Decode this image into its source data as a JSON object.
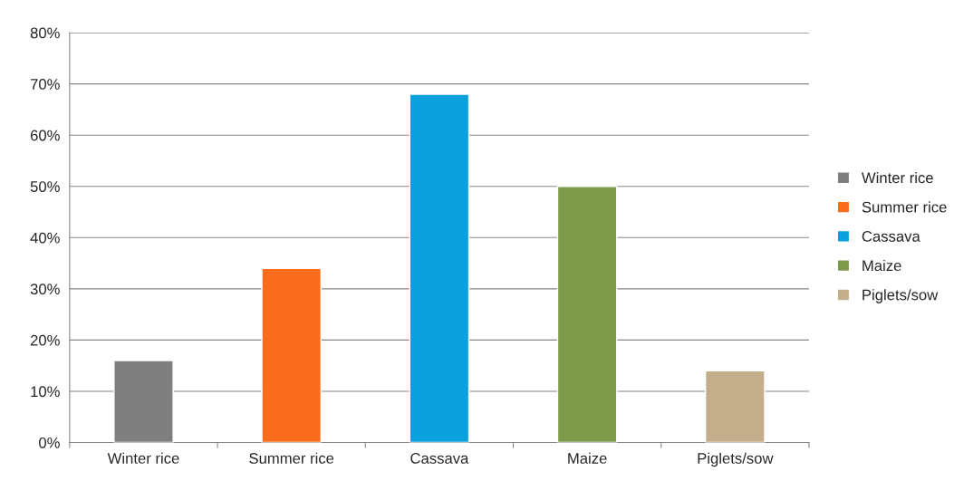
{
  "chart_data": {
    "type": "bar",
    "categories": [
      "Winter rice",
      "Summer rice",
      "Cassava",
      "Maize",
      "Piglets/sow"
    ],
    "series": [
      {
        "name": "Winter rice",
        "color": "#7f7f7f",
        "values": [
          16,
          null,
          null,
          null,
          null
        ]
      },
      {
        "name": "Summer rice",
        "color": "#f96c1c",
        "values": [
          null,
          34,
          null,
          null,
          null
        ]
      },
      {
        "name": "Cassava",
        "color": "#0ba1dc",
        "values": [
          null,
          null,
          68,
          null,
          null
        ]
      },
      {
        "name": "Maize",
        "color": "#7e9b4b",
        "values": [
          null,
          null,
          null,
          50,
          null
        ]
      },
      {
        "name": "Piglets/sow",
        "color": "#c4ad8b",
        "values": [
          null,
          null,
          null,
          null,
          14
        ]
      }
    ],
    "ylim": [
      0,
      80
    ],
    "yticks": [
      {
        "value": 0,
        "label": "0%"
      },
      {
        "value": 10,
        "label": "10%"
      },
      {
        "value": 20,
        "label": "20%"
      },
      {
        "value": 30,
        "label": "30%"
      },
      {
        "value": 40,
        "label": "40%"
      },
      {
        "value": 50,
        "label": "50%"
      },
      {
        "value": 60,
        "label": "60%"
      },
      {
        "value": 70,
        "label": "70%"
      },
      {
        "value": 80,
        "label": "80%"
      }
    ],
    "grid": "y",
    "legend": "right"
  }
}
